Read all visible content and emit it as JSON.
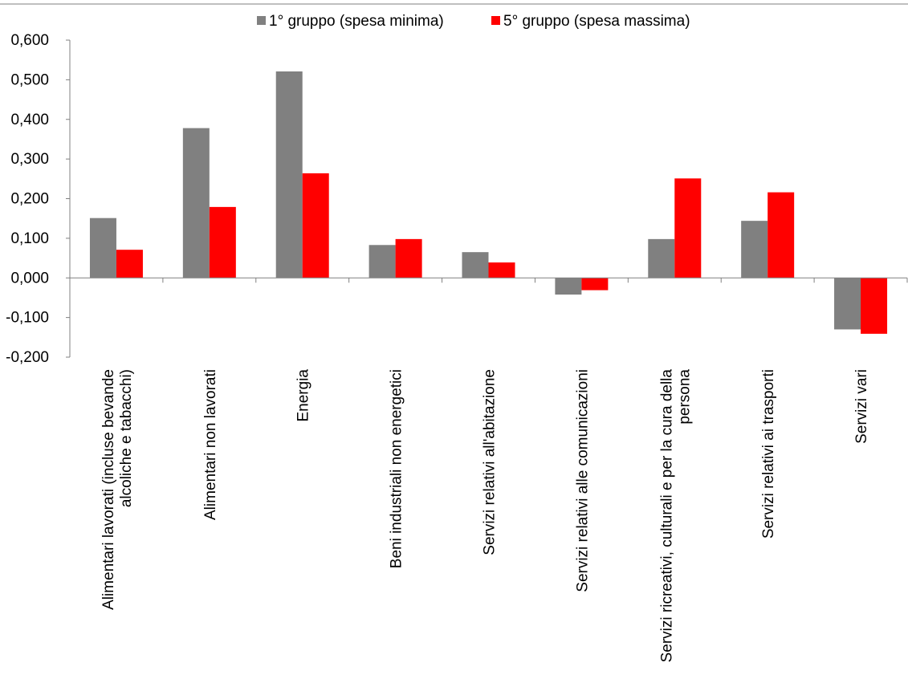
{
  "chart_data": {
    "type": "bar",
    "categories": [
      [
        "Alimentari lavorati (incluse bevande",
        "alcoliche e tabacchi)"
      ],
      [
        "Alimentari non lavorati"
      ],
      [
        "Energia"
      ],
      [
        "Beni industriali non energetici"
      ],
      [
        "Servizi relativi all'abitazione"
      ],
      [
        "Servizi relativi alle comunicazioni"
      ],
      [
        "Servizi ricreativi, culturali e per la cura della",
        "persona"
      ],
      [
        "Servizi relativi ai trasporti"
      ],
      [
        "Servizi vari"
      ]
    ],
    "series": [
      {
        "name": "1° gruppo (spesa minima)",
        "color": "#808080",
        "values": [
          0.151,
          0.378,
          0.521,
          0.083,
          0.065,
          -0.042,
          0.098,
          0.144,
          -0.13
        ]
      },
      {
        "name": "5° gruppo (spesa massima)",
        "color": "#ff0000",
        "values": [
          0.071,
          0.179,
          0.264,
          0.098,
          0.039,
          -0.031,
          0.251,
          0.216,
          -0.141
        ]
      }
    ],
    "ylim": [
      -0.2,
      0.6
    ],
    "yticks": [
      0.6,
      0.5,
      0.4,
      0.3,
      0.2,
      0.1,
      0.0,
      -0.1,
      -0.2
    ],
    "ytick_labels": [
      "0,600",
      "0,500",
      "0,400",
      "0,300",
      "0,200",
      "0,100",
      "0,000",
      "-0,100",
      "-0,200"
    ],
    "legend_position": "top",
    "grid": false
  }
}
